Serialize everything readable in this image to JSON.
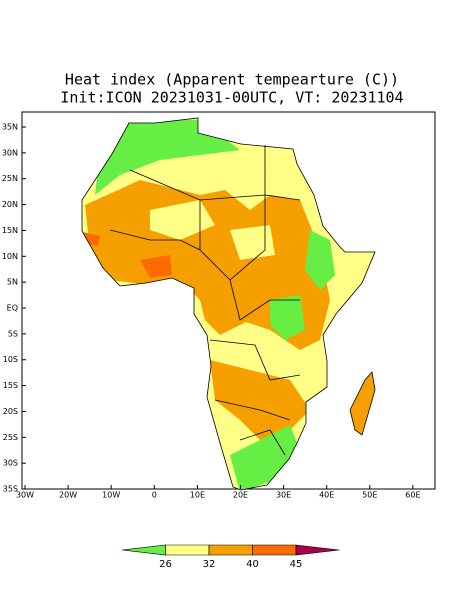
{
  "title": [
    "Heat index (Apparent tempearture (C))",
    "Init:ICON 20231031-00UTC, VT: 20231104"
  ],
  "lat_labels": [
    "35N",
    "30N",
    "25N",
    "20N",
    "15N",
    "10N",
    "5N",
    "EQ",
    "5S",
    "10S",
    "15S",
    "20S",
    "25S",
    "30S",
    "35S"
  ],
  "lon_labels": [
    "30W",
    "20W",
    "10W",
    "0",
    "10E",
    "20E",
    "30E",
    "40E",
    "50E",
    "60E"
  ],
  "colorbar": {
    "colors": [
      "#66ee44",
      "#ffff88",
      "#f5a000",
      "#ff6a00",
      "#a8004a"
    ],
    "ticks": [
      26,
      32,
      40,
      45
    ]
  }
}
